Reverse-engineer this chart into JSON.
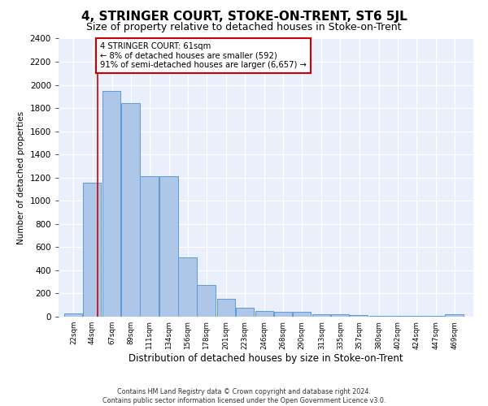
{
  "title": "4, STRINGER COURT, STOKE-ON-TRENT, ST6 5JL",
  "subtitle": "Size of property relative to detached houses in Stoke-on-Trent",
  "xlabel": "Distribution of detached houses by size in Stoke-on-Trent",
  "ylabel": "Number of detached properties",
  "bar_labels": [
    "22sqm",
    "44sqm",
    "67sqm",
    "89sqm",
    "111sqm",
    "134sqm",
    "156sqm",
    "178sqm",
    "201sqm",
    "223sqm",
    "246sqm",
    "268sqm",
    "290sqm",
    "313sqm",
    "335sqm",
    "357sqm",
    "380sqm",
    "402sqm",
    "424sqm",
    "447sqm",
    "469sqm"
  ],
  "bar_values": [
    30,
    1155,
    1950,
    1840,
    1215,
    1215,
    510,
    270,
    155,
    80,
    50,
    45,
    40,
    20,
    20,
    15,
    5,
    5,
    5,
    5,
    20
  ],
  "bar_color": "#aec6e8",
  "bar_edge_color": "#5b9bd5",
  "ylim": [
    0,
    2400
  ],
  "yticks": [
    0,
    200,
    400,
    600,
    800,
    1000,
    1200,
    1400,
    1600,
    1800,
    2000,
    2200,
    2400
  ],
  "property_line_x": 61,
  "annotation_line1": "4 STRINGER COURT: 61sqm",
  "annotation_line2": "← 8% of detached houses are smaller (592)",
  "annotation_line3": "91% of semi-detached houses are larger (6,657) →",
  "annotation_box_color": "#ffffff",
  "annotation_box_edge_color": "#cc0000",
  "vline_color": "#cc0000",
  "footer_line1": "Contains HM Land Registry data © Crown copyright and database right 2024.",
  "footer_line2": "Contains public sector information licensed under the Open Government Licence v3.0.",
  "background_color": "#eaf0fb",
  "grid_color": "#ffffff",
  "title_fontsize": 11,
  "subtitle_fontsize": 9,
  "bin_starts": [
    22,
    44,
    67,
    89,
    111,
    134,
    156,
    178,
    201,
    223,
    246,
    268,
    290,
    313,
    335,
    357,
    380,
    402,
    424,
    447,
    469
  ]
}
